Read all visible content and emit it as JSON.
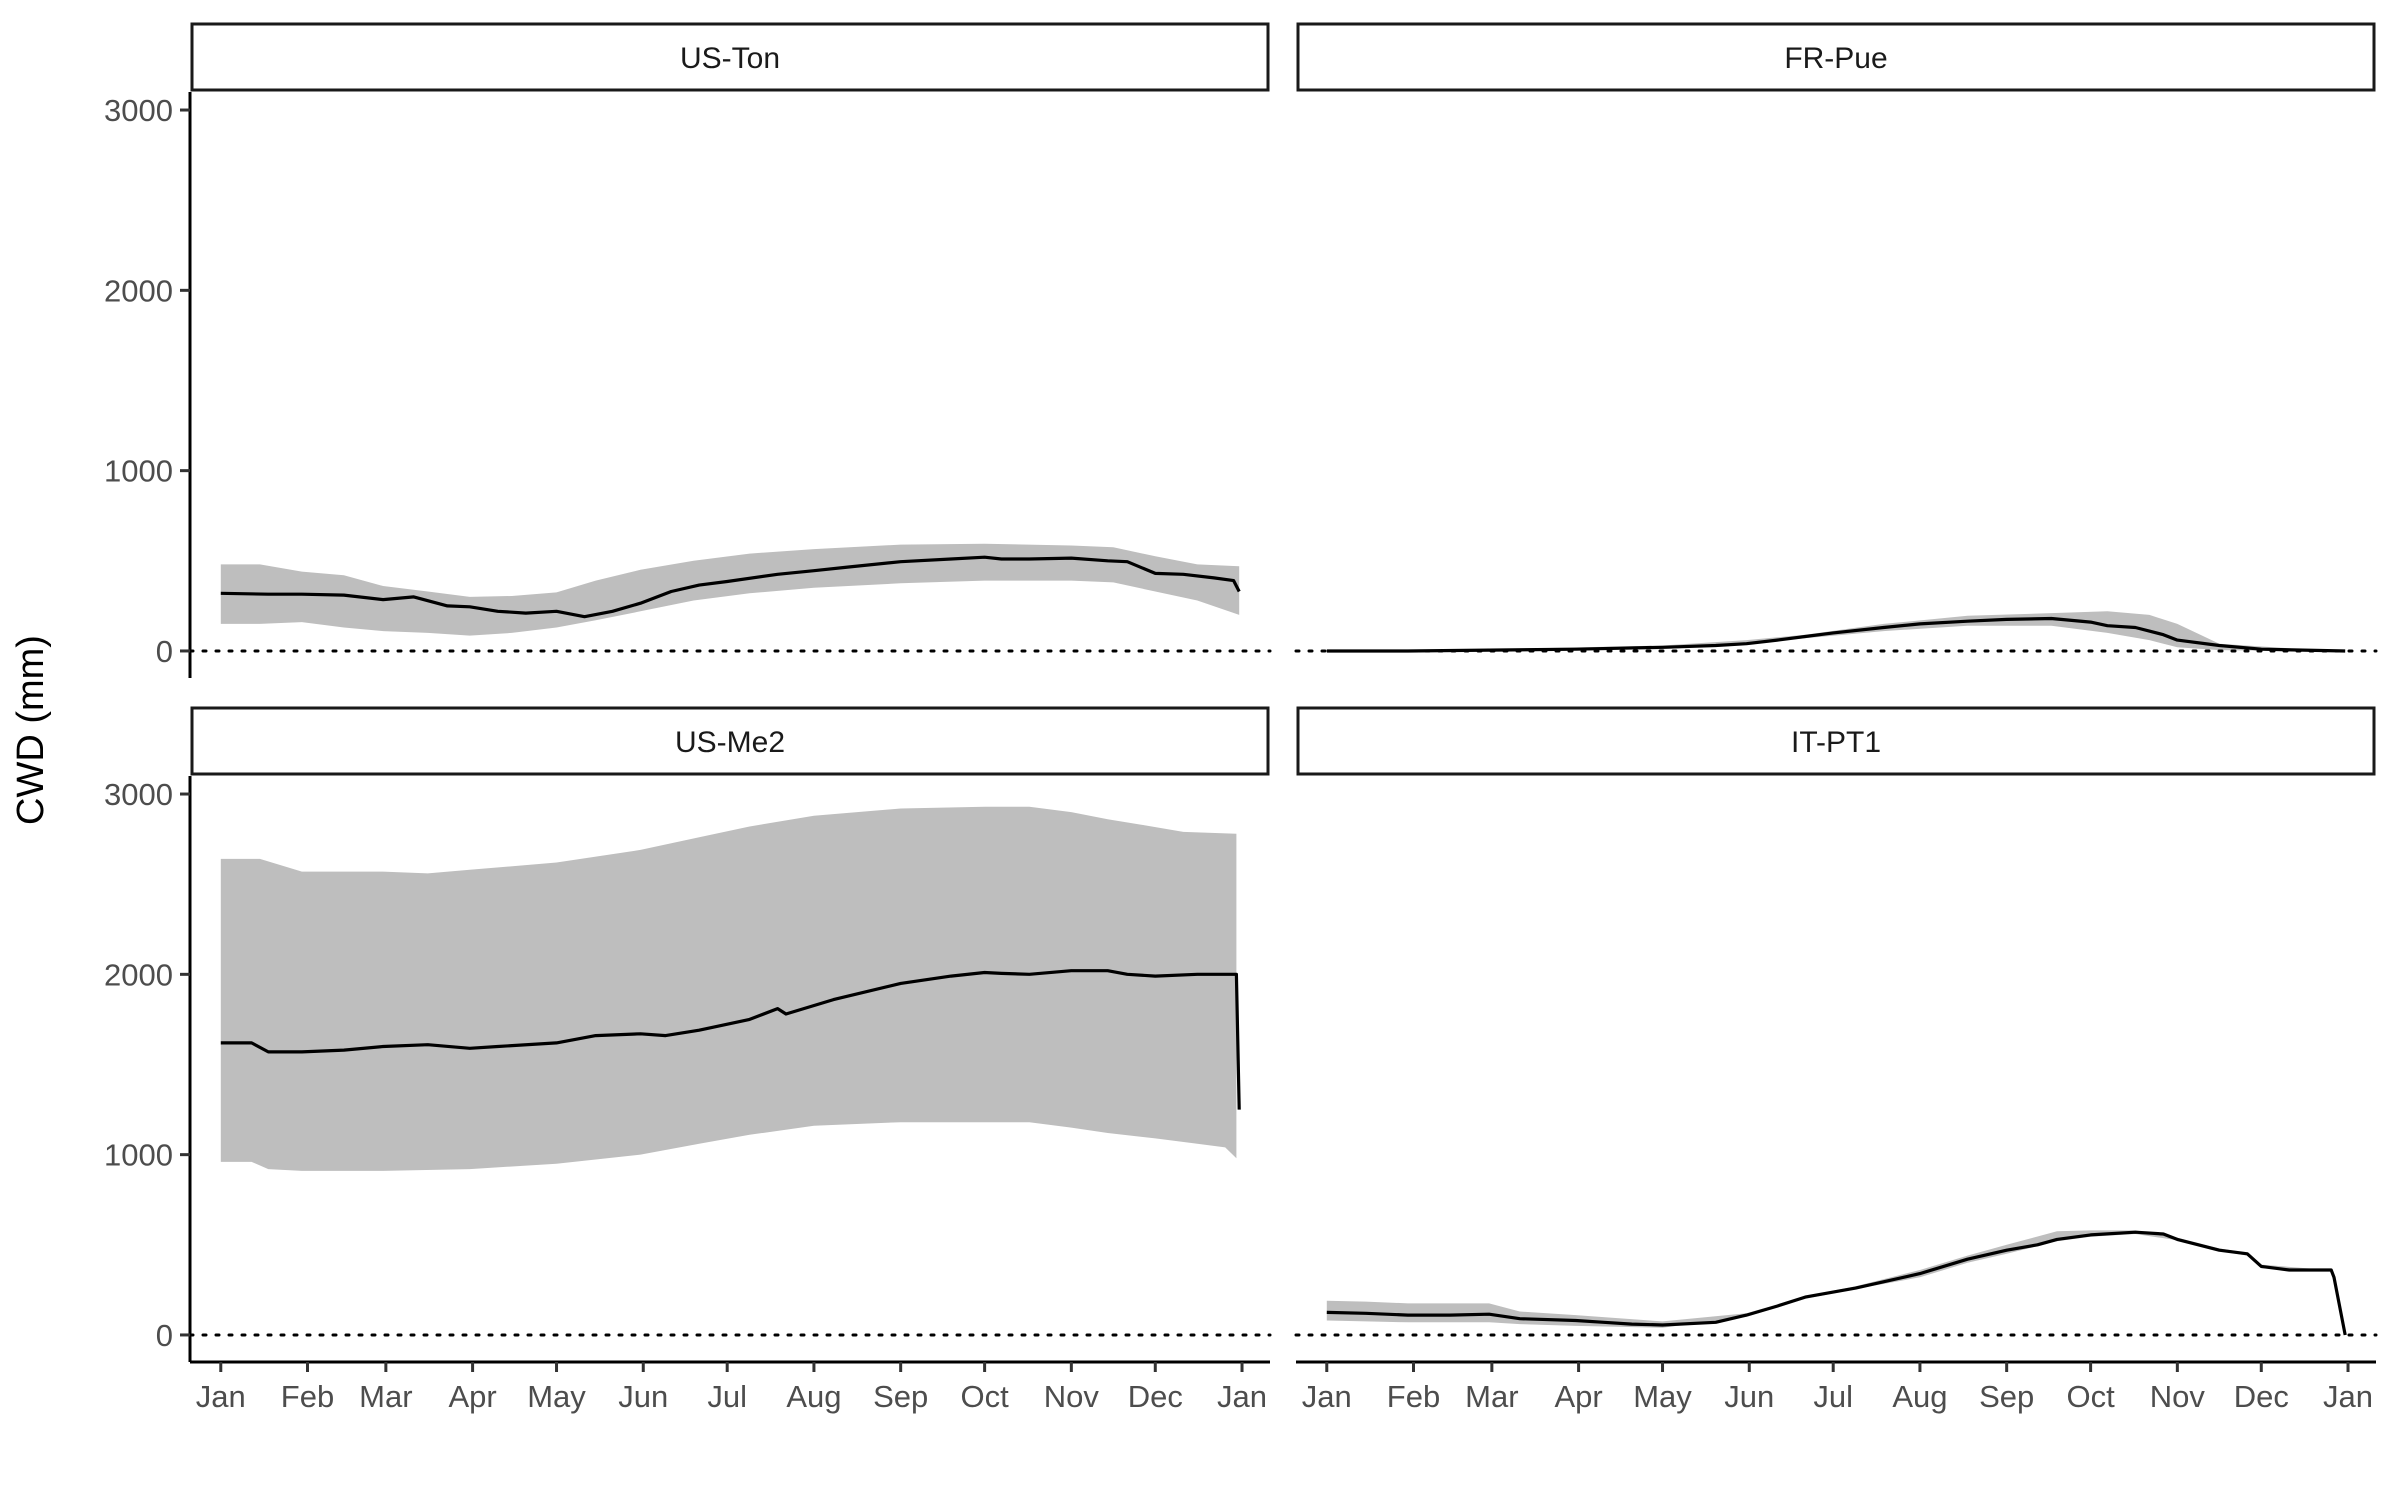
{
  "chart_data": {
    "type": "area",
    "ylabel": "CWD (mm)",
    "xlabel": "",
    "ylim": [
      -150,
      3100
    ],
    "yticks": [
      0,
      1000,
      2000,
      3000
    ],
    "x_ticks": [
      "Jan",
      "Feb",
      "Mar",
      "Apr",
      "May",
      "Jun",
      "Jul",
      "Aug",
      "Sep",
      "Oct",
      "Nov",
      "Dec",
      "Jan"
    ],
    "reference_line": {
      "y": 0,
      "style": "dotted"
    },
    "colors": {
      "line": "#000000",
      "band": "#bebebe"
    },
    "x_unit": "day of year (1 Jan = 1, following Jan = 366)",
    "panels": [
      {
        "name": "US-Ton",
        "series": [
          {
            "role": "median",
            "x": [
              1,
              18,
              30,
              45,
              59,
              70,
              82,
              90,
              100,
              110,
              121,
              131,
              141,
              151,
              162,
              172,
              182,
              200,
              213,
              225,
              244,
              262,
              274,
              280,
              290,
              305,
              318,
              325,
              335,
              345,
              356,
              363,
              365
            ],
            "values": [
              320,
              315,
              315,
              310,
              285,
              300,
              250,
              245,
              220,
              210,
              220,
              190,
              220,
              265,
              330,
              365,
              385,
              425,
              445,
              465,
              495,
              510,
              520,
              510,
              510,
              515,
              500,
              495,
              430,
              425,
              405,
              390,
              330
            ]
          },
          {
            "role": "upper",
            "x": [
              1,
              15,
              30,
              45,
              59,
              75,
              90,
              105,
              121,
              135,
              151,
              170,
              190,
              213,
              244,
              274,
              305,
              320,
              335,
              350,
              365
            ],
            "values": [
              480,
              480,
              440,
              420,
              360,
              330,
              300,
              305,
              325,
              390,
              450,
              500,
              540,
              565,
              590,
              595,
              585,
              575,
              525,
              480,
              470
            ]
          },
          {
            "role": "lower",
            "x": [
              1,
              15,
              30,
              45,
              59,
              75,
              90,
              105,
              121,
              135,
              151,
              170,
              190,
              213,
              244,
              274,
              305,
              320,
              335,
              350,
              365
            ],
            "values": [
              150,
              150,
              160,
              130,
              110,
              100,
              85,
              100,
              130,
              170,
              220,
              280,
              320,
              350,
              375,
              390,
              390,
              380,
              330,
              280,
              200
            ]
          }
        ]
      },
      {
        "name": "FR-Pue",
        "series": [
          {
            "role": "median",
            "x": [
              1,
              30,
              59,
              90,
              121,
              140,
              151,
              162,
              172,
              182,
              200,
              213,
              230,
              244,
              260,
              274,
              280,
              290,
              300,
              305,
              320,
              335,
              350,
              365
            ],
            "values": [
              0,
              0,
              5,
              10,
              20,
              30,
              40,
              60,
              80,
              100,
              130,
              150,
              165,
              175,
              180,
              160,
              140,
              130,
              90,
              60,
              30,
              10,
              5,
              0
            ]
          },
          {
            "role": "upper",
            "x": [
              1,
              59,
              121,
              151,
              172,
              200,
              230,
              260,
              280,
              295,
              305,
              320,
              350,
              365
            ],
            "values": [
              5,
              10,
              30,
              60,
              90,
              150,
              195,
              210,
              220,
              200,
              150,
              40,
              10,
              0
            ]
          },
          {
            "role": "lower",
            "x": [
              1,
              59,
              121,
              151,
              172,
              200,
              230,
              260,
              280,
              295,
              305,
              320,
              350,
              365
            ],
            "values": [
              0,
              0,
              10,
              40,
              70,
              110,
              140,
              140,
              100,
              60,
              20,
              5,
              0,
              0
            ]
          }
        ]
      },
      {
        "name": "US-Me2",
        "series": [
          {
            "role": "median",
            "x": [
              1,
              12,
              18,
              30,
              45,
              59,
              75,
              90,
              100,
              121,
              135,
              151,
              160,
              172,
              190,
              200,
              203,
              220,
              244,
              262,
              274,
              280,
              290,
              305,
              318,
              325,
              335,
              350,
              364,
              365
            ],
            "values": [
              1620,
              1620,
              1570,
              1570,
              1580,
              1600,
              1610,
              1590,
              1600,
              1620,
              1660,
              1670,
              1660,
              1690,
              1750,
              1810,
              1780,
              1860,
              1950,
              1990,
              2010,
              2005,
              2000,
              2020,
              2020,
              2000,
              1990,
              2000,
              2000,
              1250
            ]
          },
          {
            "role": "upper",
            "x": [
              1,
              15,
              30,
              59,
              75,
              90,
              121,
              151,
              172,
              190,
              213,
              244,
              274,
              290,
              305,
              318,
              330,
              345,
              364
            ],
            "values": [
              2640,
              2640,
              2570,
              2570,
              2560,
              2580,
              2620,
              2690,
              2760,
              2820,
              2880,
              2920,
              2930,
              2930,
              2900,
              2860,
              2830,
              2790,
              2780
            ]
          },
          {
            "role": "lower",
            "x": [
              1,
              12,
              18,
              30,
              59,
              90,
              121,
              151,
              172,
              190,
              213,
              244,
              274,
              290,
              305,
              318,
              335,
              350,
              360,
              364
            ],
            "values": [
              960,
              960,
              920,
              910,
              910,
              920,
              950,
              1000,
              1060,
              1110,
              1160,
              1180,
              1180,
              1180,
              1150,
              1120,
              1090,
              1060,
              1040,
              980
            ]
          }
        ]
      },
      {
        "name": "IT-PT1",
        "series": [
          {
            "role": "median",
            "x": [
              1,
              15,
              30,
              45,
              59,
              70,
              90,
              100,
              110,
              121,
              140,
              151,
              162,
              172,
              190,
              213,
              230,
              244,
              255,
              262,
              274,
              290,
              300,
              305,
              320,
              330,
              335,
              345,
              355,
              360,
              361,
              365
            ],
            "values": [
              125,
              120,
              110,
              110,
              115,
              90,
              80,
              70,
              60,
              55,
              70,
              110,
              160,
              210,
              260,
              340,
              420,
              470,
              500,
              530,
              555,
              570,
              560,
              530,
              470,
              450,
              380,
              360,
              360,
              360,
              320,
              0
            ]
          },
          {
            "role": "upper",
            "x": [
              1,
              15,
              30,
              59,
              70,
              90,
              121,
              151,
              172,
              190,
              213,
              230,
              244,
              262,
              274,
              290,
              305,
              320,
              330,
              335,
              355,
              360
            ],
            "values": [
              190,
              185,
              175,
              175,
              130,
              110,
              75,
              120,
              215,
              270,
              360,
              440,
              500,
              575,
              580,
              580,
              540,
              480,
              455,
              390,
              365,
              360
            ]
          },
          {
            "role": "lower",
            "x": [
              1,
              15,
              30,
              59,
              70,
              90,
              121,
              151,
              172,
              190,
              213,
              230,
              244,
              262,
              274,
              290,
              305,
              320,
              330,
              335,
              355,
              360
            ],
            "values": [
              80,
              75,
              70,
              70,
              60,
              50,
              40,
              100,
              200,
              255,
              320,
              400,
              450,
              520,
              545,
              560,
              525,
              465,
              440,
              370,
              355,
              355
            ]
          }
        ]
      }
    ]
  }
}
